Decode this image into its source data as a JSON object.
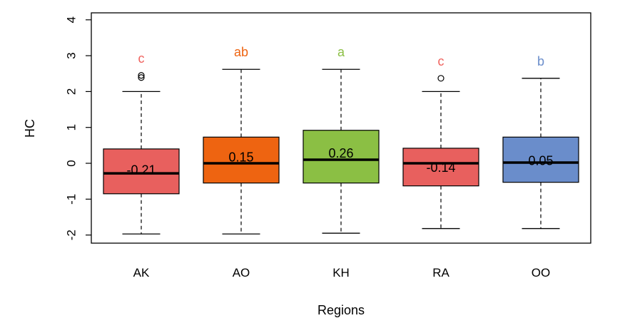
{
  "chart_data": {
    "type": "boxplot",
    "xlabel": "Regions",
    "ylabel": "HC",
    "ylim": [
      -2.2,
      4.2
    ],
    "yticks": [
      -2,
      -1,
      0,
      1,
      2,
      3,
      4
    ],
    "ytick_labels": [
      "-2",
      "-1",
      "0",
      "1",
      "2",
      "3",
      "4"
    ],
    "grid": false,
    "categories": [
      "AK",
      "AO",
      "KH",
      "RA",
      "OO"
    ],
    "boxes": [
      {
        "category": "AK",
        "whisker_low": -1.97,
        "q1": -0.85,
        "median": -0.28,
        "q3": 0.4,
        "whisker_high": 2.0,
        "outliers": [
          2.39,
          2.45
        ],
        "mean_label": "-0.21",
        "sig_letter": "c",
        "color": "#E8605E",
        "letter_color": "#F0625E"
      },
      {
        "category": "AO",
        "whisker_low": -1.97,
        "q1": -0.55,
        "median": 0.0,
        "q3": 0.73,
        "whisker_high": 2.62,
        "outliers": [],
        "mean_label": "0.15",
        "sig_letter": "ab",
        "color": "#EE6411",
        "letter_color": "#EE6411"
      },
      {
        "category": "KH",
        "whisker_low": -1.95,
        "q1": -0.55,
        "median": 0.1,
        "q3": 0.92,
        "whisker_high": 2.62,
        "outliers": [],
        "mean_label": "0.26",
        "sig_letter": "a",
        "color": "#8BBF44",
        "letter_color": "#8BBF44"
      },
      {
        "category": "RA",
        "whisker_low": -1.82,
        "q1": -0.63,
        "median": 0.0,
        "q3": 0.42,
        "whisker_high": 2.0,
        "outliers": [
          2.37
        ],
        "mean_label": "-0.14",
        "sig_letter": "c",
        "color": "#E8605E",
        "letter_color": "#F0625E"
      },
      {
        "category": "OO",
        "whisker_low": -1.82,
        "q1": -0.53,
        "median": 0.02,
        "q3": 0.73,
        "whisker_high": 2.37,
        "outliers": [],
        "mean_label": "0.05",
        "sig_letter": "b",
        "color": "#6A8DCB",
        "letter_color": "#6A8DCB"
      }
    ]
  }
}
